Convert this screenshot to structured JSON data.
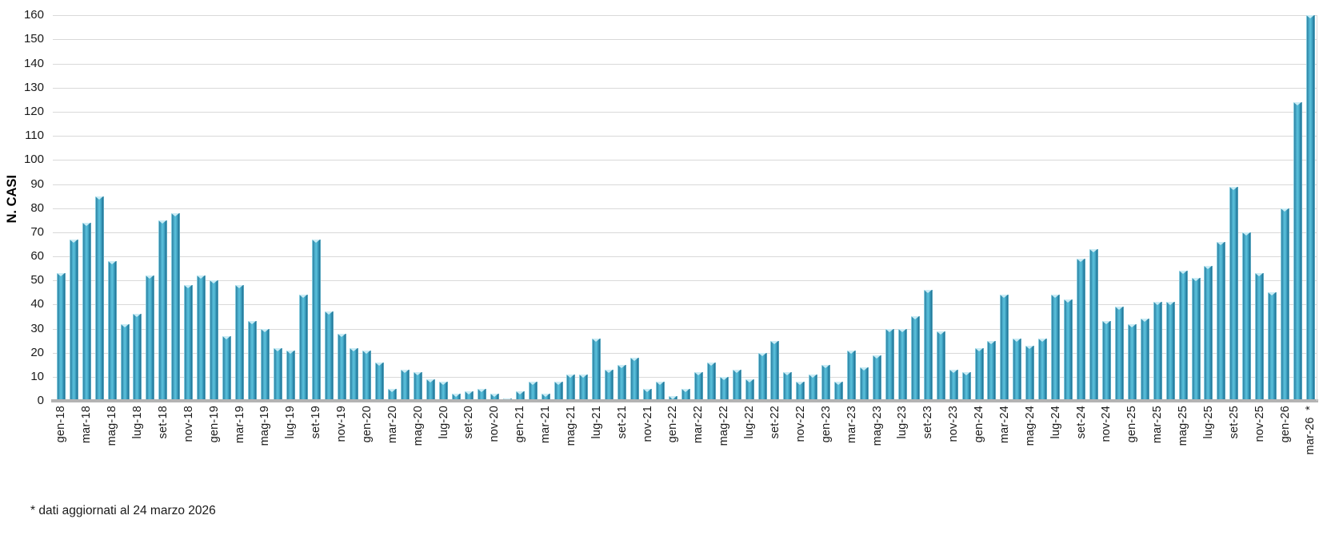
{
  "chart_data": {
    "type": "bar",
    "title": "",
    "xlabel": "",
    "ylabel": "N. CASI",
    "ylim": [
      0,
      160
    ],
    "ytick_step": 10,
    "grid": "horizontal",
    "legend": "none",
    "xtick_shown_every": 2,
    "last_xtick_suffix": "*",
    "footnote": "* dati aggiornati al 24 marzo 2026",
    "categories": [
      "gen-18",
      "feb-18",
      "mar-18",
      "apr-18",
      "mag-18",
      "giu-18",
      "lug-18",
      "ago-18",
      "set-18",
      "ott-18",
      "nov-18",
      "dic-18",
      "gen-19",
      "feb-19",
      "mar-19",
      "apr-19",
      "mag-19",
      "giu-19",
      "lug-19",
      "ago-19",
      "set-19",
      "ott-19",
      "nov-19",
      "dic-19",
      "gen-20",
      "feb-20",
      "mar-20",
      "apr-20",
      "mag-20",
      "giu-20",
      "lug-20",
      "ago-20",
      "set-20",
      "ott-20",
      "nov-20",
      "dic-20",
      "gen-21",
      "feb-21",
      "mar-21",
      "apr-21",
      "mag-21",
      "giu-21",
      "lug-21",
      "ago-21",
      "set-21",
      "ott-21",
      "nov-21",
      "dic-21",
      "gen-22",
      "feb-22",
      "mar-22",
      "apr-22",
      "mag-22",
      "giu-22",
      "lug-22",
      "ago-22",
      "set-22",
      "ott-22",
      "nov-22",
      "dic-22",
      "gen-23",
      "feb-23",
      "mar-23",
      "apr-23",
      "mag-23",
      "giu-23",
      "lug-23",
      "ago-23",
      "set-23",
      "ott-23",
      "nov-23",
      "dic-23",
      "gen-24",
      "feb-24",
      "mar-24",
      "apr-24",
      "mag-24",
      "giu-24",
      "lug-24",
      "ago-24",
      "set-24",
      "ott-24",
      "nov-24",
      "dic-24",
      "gen-25",
      "feb-25",
      "mar-25",
      "apr-25",
      "mag-25",
      "giu-25",
      "lug-25",
      "ago-25",
      "set-25",
      "ott-25",
      "nov-25",
      "dic-25",
      "gen-26",
      "feb-26",
      "mar-26"
    ],
    "values": [
      53,
      67,
      74,
      85,
      58,
      32,
      36,
      52,
      75,
      78,
      48,
      52,
      50,
      27,
      48,
      33,
      30,
      22,
      21,
      44,
      67,
      37,
      28,
      22,
      21,
      16,
      5,
      13,
      12,
      9,
      8,
      3,
      4,
      5,
      3,
      1,
      4,
      8,
      3,
      8,
      11,
      11,
      26,
      13,
      15,
      18,
      5,
      8,
      2,
      5,
      12,
      16,
      10,
      13,
      9,
      20,
      25,
      12,
      8,
      11,
      15,
      8,
      21,
      14,
      19,
      30,
      30,
      35,
      46,
      29,
      13,
      12,
      22,
      25,
      44,
      26,
      23,
      26,
      44,
      42,
      59,
      63,
      33,
      39,
      32,
      34,
      41,
      41,
      54,
      51,
      56,
      66,
      89,
      70,
      53,
      45,
      80,
      124,
      160
    ],
    "colors": {
      "bar_main": "#3aa0c0",
      "bar_edge": "#21708f",
      "bar_highlight": "#8ed8ea",
      "gridline": "#d9d9d9",
      "axis_line": "#b3b3b3",
      "text": "#1a1a1a"
    }
  }
}
